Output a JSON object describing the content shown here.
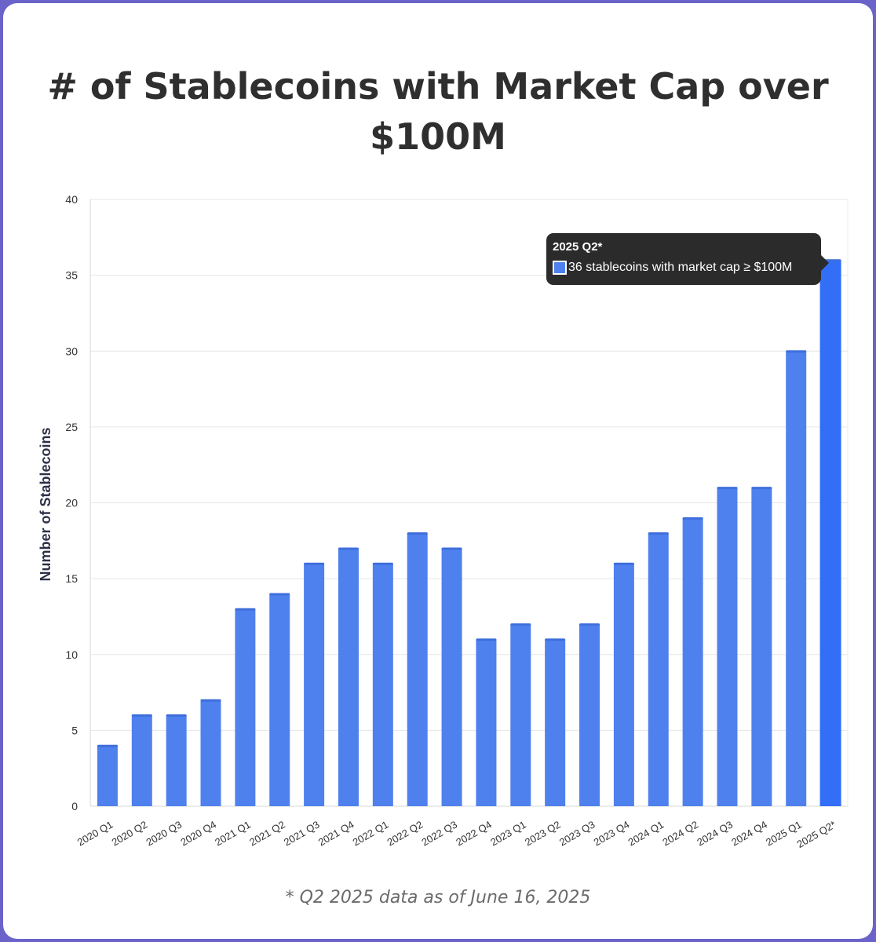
{
  "title": "# of Stablecoins with Market Cap over $100M",
  "footnote": "* Q2 2025 data as of June 16, 2025",
  "tooltip": {
    "title": "2025 Q2*",
    "text": "36 stablecoins with market cap ≥ $100M",
    "swatch_color": "#4f81ee"
  },
  "colors": {
    "bar": "#4f81ee",
    "bar_highlight": "#326ef6",
    "bar_cap": "#3f6fdc",
    "grid": "#e6e6e6",
    "axis_text": "#333333"
  },
  "chart_data": {
    "type": "bar",
    "title": "# of Stablecoins with Market Cap over $100M",
    "xlabel": "",
    "ylabel": "Number of Stablecoins",
    "ylim": [
      0,
      40
    ],
    "yticks": [
      0,
      5,
      10,
      15,
      20,
      25,
      30,
      35,
      40
    ],
    "grid": true,
    "highlighted_category": "2025 Q2*",
    "categories": [
      "2020 Q1",
      "2020 Q2",
      "2020 Q3",
      "2020 Q4",
      "2021 Q1",
      "2021 Q2",
      "2021 Q3",
      "2021 Q4",
      "2022 Q1",
      "2022 Q2",
      "2022 Q3",
      "2022 Q4",
      "2023 Q1",
      "2023 Q2",
      "2023 Q3",
      "2023 Q4",
      "2024 Q1",
      "2024 Q2",
      "2024 Q3",
      "2024 Q4",
      "2025 Q1",
      "2025 Q2*"
    ],
    "values": [
      4,
      6,
      6,
      7,
      13,
      14,
      16,
      17,
      16,
      18,
      17,
      11,
      12,
      11,
      12,
      16,
      18,
      19,
      21,
      21,
      30,
      36
    ]
  }
}
